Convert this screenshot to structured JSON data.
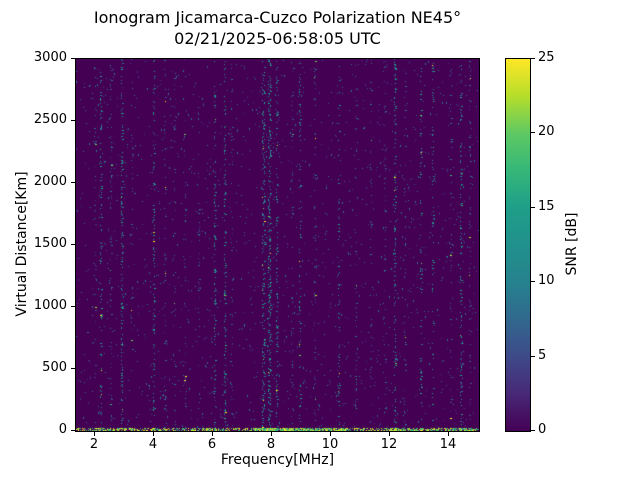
{
  "chart_data": {
    "type": "heatmap",
    "title": "Ionogram Jicamarca-Cuzco Polarization NE45°",
    "subtitle": "02/21/2025-06:58:05 UTC",
    "xlabel": "Frequency[MHz]",
    "ylabel": "Virtual Distance[Km]",
    "xlim": [
      1.4,
      15.05
    ],
    "ylim": [
      0,
      3000
    ],
    "xticks": [
      2,
      4,
      6,
      8,
      10,
      12,
      14
    ],
    "yticks": [
      0,
      500,
      1000,
      1500,
      2000,
      2500,
      3000
    ],
    "grid": false,
    "colorbar": {
      "label": "SNR [dB]",
      "min": 0,
      "max": 25,
      "ticks": [
        0,
        5,
        10,
        15,
        20,
        25
      ],
      "colormap": "viridis",
      "stops": [
        [
          0.0,
          "#440154"
        ],
        [
          0.1,
          "#482878"
        ],
        [
          0.2,
          "#3e4a89"
        ],
        [
          0.3,
          "#31688e"
        ],
        [
          0.4,
          "#26828e"
        ],
        [
          0.5,
          "#21918c"
        ],
        [
          0.6,
          "#1f9e89"
        ],
        [
          0.7,
          "#35b779"
        ],
        [
          0.8,
          "#5ec962"
        ],
        [
          0.9,
          "#b5de2b"
        ],
        [
          1.0,
          "#fde725"
        ]
      ]
    },
    "background_color": "#440154",
    "noise": {
      "seed": 42,
      "ambient_density": 0.01,
      "dim_palette": [
        "#46327e",
        "#3b528b",
        "#31688e",
        "#2c728e"
      ],
      "mid_palette": [
        "#26828e",
        "#21918c",
        "#1f9e89",
        "#2c728e"
      ],
      "bright_palette": [
        "#fde725",
        "#b5de2b",
        "#6ece58",
        "#35b779",
        "#1f9e89"
      ]
    },
    "rfi_stripes": [
      {
        "freq": 2.05,
        "density": 0.1,
        "width": 2,
        "tone": "dim"
      },
      {
        "freq": 2.25,
        "density": 0.18,
        "width": 2,
        "tone": "mid"
      },
      {
        "freq": 2.6,
        "density": 0.12,
        "width": 2,
        "tone": "dim"
      },
      {
        "freq": 2.95,
        "density": 0.3,
        "width": 2,
        "tone": "mid"
      },
      {
        "freq": 3.3,
        "density": 0.1,
        "width": 2,
        "tone": "dim"
      },
      {
        "freq": 4.05,
        "density": 0.22,
        "width": 2,
        "tone": "mid"
      },
      {
        "freq": 4.4,
        "density": 0.15,
        "width": 2,
        "tone": "dim"
      },
      {
        "freq": 4.75,
        "density": 0.12,
        "width": 2,
        "tone": "dim"
      },
      {
        "freq": 5.1,
        "density": 0.1,
        "width": 2,
        "tone": "dim"
      },
      {
        "freq": 5.55,
        "density": 0.08,
        "width": 2,
        "tone": "dim"
      },
      {
        "freq": 6.1,
        "density": 0.25,
        "width": 2,
        "tone": "mid"
      },
      {
        "freq": 6.45,
        "density": 0.3,
        "width": 2,
        "tone": "mid"
      },
      {
        "freq": 6.7,
        "density": 0.12,
        "width": 2,
        "tone": "dim"
      },
      {
        "freq": 7.75,
        "density": 0.45,
        "width": 3,
        "tone": "mid"
      },
      {
        "freq": 7.95,
        "density": 0.55,
        "width": 3,
        "tone": "mid"
      },
      {
        "freq": 8.2,
        "density": 0.25,
        "width": 2,
        "tone": "mid"
      },
      {
        "freq": 8.7,
        "density": 0.15,
        "width": 2,
        "tone": "dim"
      },
      {
        "freq": 9.0,
        "density": 0.2,
        "width": 2,
        "tone": "mid"
      },
      {
        "freq": 9.5,
        "density": 0.15,
        "width": 2,
        "tone": "dim"
      },
      {
        "freq": 10.3,
        "density": 0.18,
        "width": 2,
        "tone": "mid"
      },
      {
        "freq": 10.9,
        "density": 0.12,
        "width": 2,
        "tone": "dim"
      },
      {
        "freq": 11.4,
        "density": 0.15,
        "width": 2,
        "tone": "dim"
      },
      {
        "freq": 11.85,
        "density": 0.12,
        "width": 2,
        "tone": "dim"
      },
      {
        "freq": 12.2,
        "density": 0.3,
        "width": 2,
        "tone": "mid"
      },
      {
        "freq": 12.55,
        "density": 0.15,
        "width": 2,
        "tone": "dim"
      },
      {
        "freq": 13.1,
        "density": 0.15,
        "width": 2,
        "tone": "mid"
      },
      {
        "freq": 13.5,
        "density": 0.18,
        "width": 2,
        "tone": "mid"
      },
      {
        "freq": 14.1,
        "density": 0.12,
        "width": 2,
        "tone": "dim"
      },
      {
        "freq": 14.45,
        "density": 0.25,
        "width": 2,
        "tone": "mid"
      },
      {
        "freq": 14.75,
        "density": 0.15,
        "width": 2,
        "tone": "dim"
      }
    ],
    "baseline": {
      "height_km": 25,
      "density": 0.55,
      "hot_zones": [
        {
          "from": 7.4,
          "to": 10.6,
          "density": 0.9
        },
        {
          "from": 11.9,
          "to": 13.2,
          "density": 0.75
        },
        {
          "from": 14.0,
          "to": 15.0,
          "density": 0.7
        }
      ]
    }
  }
}
